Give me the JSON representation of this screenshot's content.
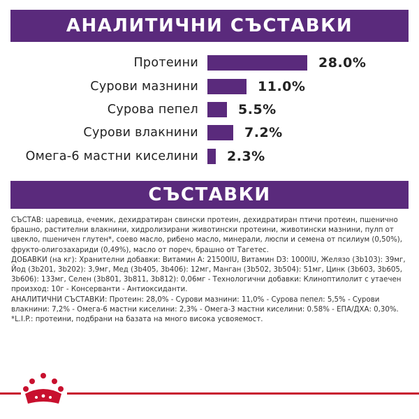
{
  "analytics": {
    "title": "АНАЛИТИЧНИ СЪСТАВКИ",
    "rows": [
      {
        "label": "Протеини",
        "value": "28.0%",
        "percent": 28.0
      },
      {
        "label": "Сурови мазнини",
        "value": "11.0%",
        "percent": 11.0
      },
      {
        "label": "Сурова пепел",
        "value": "5.5%",
        "percent": 5.5
      },
      {
        "label": "Сурови влакнини",
        "value": "7.2%",
        "percent": 7.2
      },
      {
        "label": "Омега-6 мастни киселини",
        "value": "2.3%",
        "percent": 2.3
      }
    ]
  },
  "composition": {
    "title": "СЪСТАВКИ",
    "paragraphs": [
      "СЪСТАВ: царевица, ечемик, дехидратиран свински протеин, дехидратиран птичи протеин, пшенично брашно, растителни влакнини, хидролизирани животински протеини, животински мазнини, пулп от цвекло, пшеничен глутен*, соево масло, рибено масло, минерали, люспи и семена от псилиум (0,50%), фрукто-олигозахариди (0,49%), масло от пореч, брашно от Тагетес.",
      "ДОБАВКИ (на кг): Хранителни добавки: Витамин А: 21500IU, Витамин D3: 1000IU, Желязо (3b103): 39мг, Йод (3b201, 3b202): 3,9мг, Мед (3b405, 3b406): 12мг, Манган (3b502, 3b504): 51мг, Цинк (3b603, 3b605, 3b606): 133мг, Селен (3b801, 3b811, 3b812): 0,06мг - Технологични добавки: Клиноптилолит с утаечен произход: 10г - Консерванти - Антиоксиданти.",
      "АНАЛИТИЧНИ СЪСТАВКИ: Протеин: 28,0% - Сурови мазнини: 11,0% - Сурова пепел: 5,5% - Сурови влакнини: 7,2% - Омега-6 мастни киселини: 2,3% - Омега-3 мастни киселини: 0.58% - ЕПА/ДХА: 0,30%.",
      "*L.I.P.: протеини, подбрани на базата на много висока усвояемост."
    ]
  },
  "colors": {
    "accent": "#5a2a7c",
    "brand_red": "#c8102e"
  },
  "footer": {
    "logo_icon": "crown-icon"
  }
}
